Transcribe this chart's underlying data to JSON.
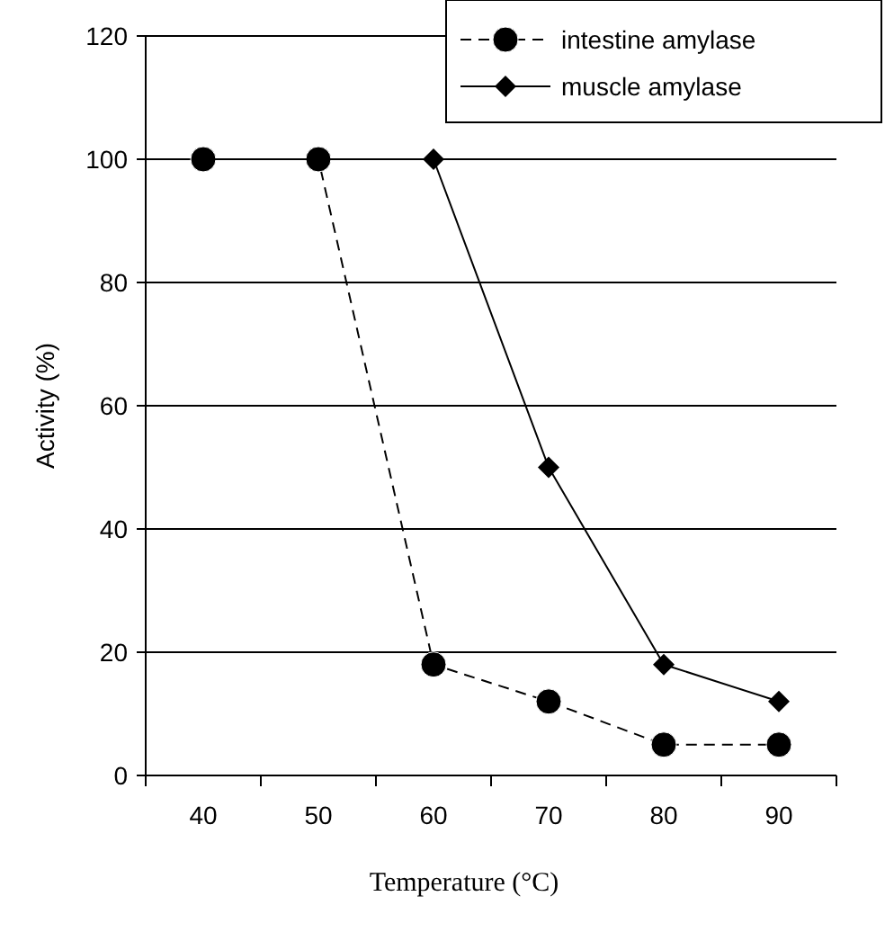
{
  "chart_data": {
    "type": "line",
    "xlabel": "Temperature (°C)",
    "ylabel": "Activity (%)",
    "categories": [
      "40",
      "50",
      "60",
      "70",
      "80",
      "90"
    ],
    "series": [
      {
        "name": "intestine amylase",
        "color": "#000000",
        "values": [
          100,
          100,
          18,
          12,
          5,
          5
        ],
        "marker": "circle",
        "line_style": "dashed"
      },
      {
        "name": "muscle amylase",
        "color": "#000000",
        "values": [
          100,
          100,
          100,
          50,
          18,
          12
        ],
        "marker": "diamond",
        "line_style": "solid"
      }
    ],
    "ylim": [
      0,
      120
    ],
    "yticks": [
      0,
      20,
      40,
      60,
      80,
      100,
      120
    ],
    "grid": "y",
    "legend": "top right"
  }
}
